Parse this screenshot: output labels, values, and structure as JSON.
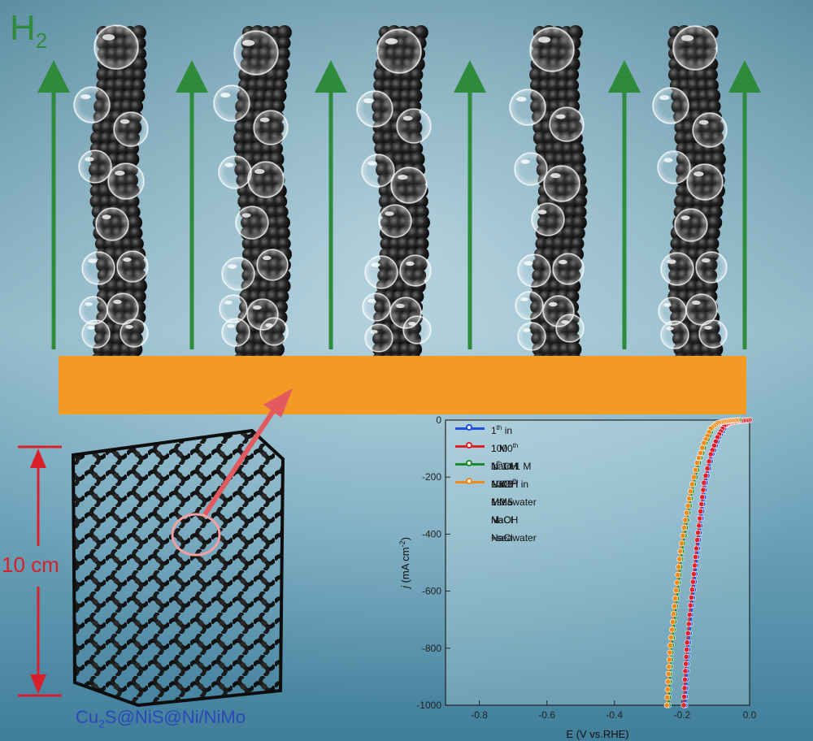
{
  "labels": {
    "h2_main": "H",
    "h2_sub": "2",
    "scale": "10 cm",
    "formula_parts": [
      "Cu",
      "2",
      "S@NiS@Ni/NiMo"
    ]
  },
  "colors": {
    "substrate": "#f39a25",
    "arrow_green": "#2e8b3c",
    "scale_red": "#d9202a",
    "pointer_red": "#e25a60",
    "formula_blue": "#2c48b8"
  },
  "chart_data": {
    "type": "line",
    "xlabel": "E (V vs.RHE)",
    "ylabel_parts": [
      "j",
      " (mA cm",
      "-2",
      ")"
    ],
    "xlim": [
      -0.9,
      0.0
    ],
    "ylim": [
      -1000,
      0
    ],
    "xticks": [
      "-0.8",
      "-0.6",
      "-0.4",
      "-0.2",
      "0.0"
    ],
    "yticks": [
      "0",
      "-200",
      "-400",
      "-600",
      "-800",
      "-1000"
    ],
    "legend_position": "top-left",
    "series": [
      {
        "name_parts": [
          "1",
          "th",
          " in 1 M NaOH + 0.5 M NaCl"
        ],
        "color": "#1f4fe0",
        "x": [
          0.0,
          -0.02,
          -0.04,
          -0.06,
          -0.07,
          -0.09,
          -0.11,
          -0.13,
          -0.14,
          -0.15,
          -0.16,
          -0.17,
          -0.18,
          -0.185,
          -0.19
        ],
        "y": [
          0,
          -2,
          -5,
          -10,
          -20,
          -60,
          -120,
          -220,
          -320,
          -420,
          -540,
          -650,
          -780,
          -880,
          -1000
        ]
      },
      {
        "name_parts": [
          "1000",
          "th",
          " in 1 M NaOH + 0.5 M NaCl"
        ],
        "color": "#e0202a",
        "x": [
          0.0,
          -0.02,
          -0.04,
          -0.06,
          -0.075,
          -0.095,
          -0.115,
          -0.135,
          -0.145,
          -0.155,
          -0.165,
          -0.175,
          -0.185,
          -0.19,
          -0.195
        ],
        "y": [
          0,
          -2,
          -5,
          -10,
          -20,
          -60,
          -120,
          -220,
          -320,
          -420,
          -540,
          -650,
          -780,
          -880,
          -1000
        ]
      },
      {
        "name_parts": [
          "1",
          "th",
          " in 1 M NaOH +seawater"
        ],
        "color": "#1e8a2e",
        "x": [
          -0.03,
          -0.05,
          -0.07,
          -0.09,
          -0.11,
          -0.13,
          -0.15,
          -0.17,
          -0.185,
          -0.2,
          -0.21,
          -0.22,
          -0.23,
          -0.235,
          -0.24
        ],
        "y": [
          0,
          -2,
          -5,
          -10,
          -30,
          -80,
          -150,
          -250,
          -350,
          -460,
          -570,
          -680,
          -790,
          -890,
          -1000
        ]
      },
      {
        "name_parts": [
          "1000",
          "th",
          " in 1 M NaOH +seawater"
        ],
        "color": "#f08a1a",
        "x": [
          -0.035,
          -0.055,
          -0.075,
          -0.095,
          -0.115,
          -0.135,
          -0.155,
          -0.175,
          -0.19,
          -0.205,
          -0.215,
          -0.225,
          -0.235,
          -0.24,
          -0.245
        ],
        "y": [
          0,
          -2,
          -5,
          -10,
          -30,
          -80,
          -150,
          -250,
          -350,
          -460,
          -570,
          -680,
          -790,
          -890,
          -1000
        ]
      }
    ]
  }
}
